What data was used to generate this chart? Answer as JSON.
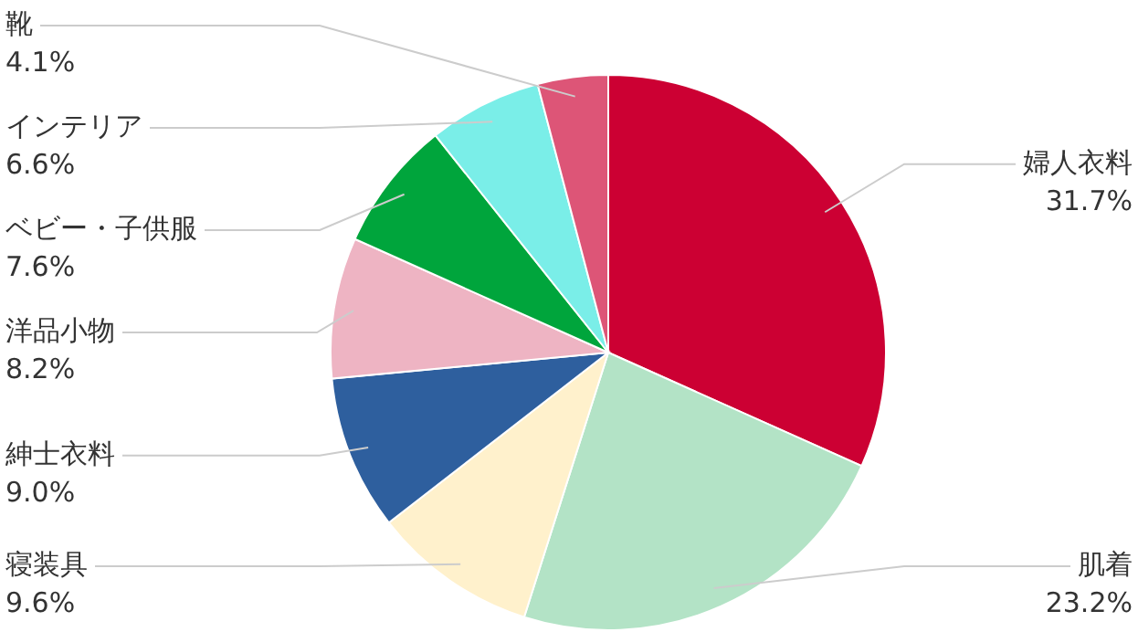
{
  "chart_data": {
    "type": "pie",
    "categories": [
      "婦人衣料",
      "肌着",
      "寝装具",
      "紳士衣料",
      "洋品小物",
      "ベビー・子供服",
      "インテリア",
      "靴"
    ],
    "values": [
      31.7,
      23.2,
      9.6,
      9.0,
      8.2,
      7.6,
      6.6,
      4.1
    ],
    "value_labels": [
      "31.7%",
      "23.2%",
      "9.6%",
      "9.0%",
      "8.2%",
      "7.6%",
      "6.6%",
      "4.1%"
    ],
    "colors": [
      "#cc0033",
      "#b3e3c6",
      "#fff1cc",
      "#2e5f9e",
      "#eeb4c3",
      "#00a53c",
      "#7aeee8",
      "#dd5577"
    ]
  }
}
